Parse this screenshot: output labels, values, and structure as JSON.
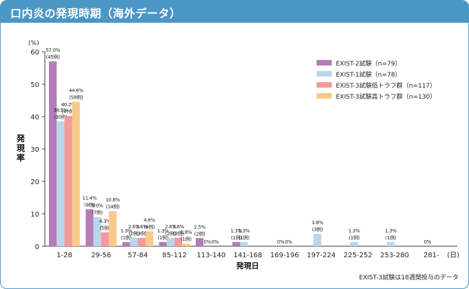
{
  "header": {
    "title": "口内炎の発現時期（海外データ）"
  },
  "footnote": "EXIST-3試験は18週間投与のデータ",
  "chart_data": {
    "type": "bar",
    "ylabel": "発現率",
    "yunit": "(%)",
    "xlabel": "発現日",
    "xunit": "(日)",
    "ylim": [
      0,
      60
    ],
    "yticks": [
      0,
      10,
      20,
      30,
      40,
      50,
      60
    ],
    "grid": false,
    "legend_position": "top-right",
    "categories": [
      "1-28",
      "29-56",
      "57-84",
      "85-112",
      "113-140",
      "141-168",
      "169-196",
      "197-224",
      "225-252",
      "253-280",
      "281-"
    ],
    "series": [
      {
        "name": "EXIST-2試験（n=79）",
        "color": "#b47cb8",
        "values": [
          57.0,
          11.4,
          1.3,
          1.3,
          2.5,
          1.3,
          null,
          null,
          null,
          null,
          null
        ],
        "labels": [
          [
            "57.0%",
            "(45例)"
          ],
          [
            "11.4%",
            "(9例)"
          ],
          [
            "1.3%",
            "(1例)"
          ],
          [
            "1.3%",
            "(1例)"
          ],
          [
            "2.5%",
            "(2例)"
          ],
          [
            "1.3%",
            "(1例)"
          ],
          [],
          [],
          [],
          [],
          []
        ]
      },
      {
        "name": "EXIST-1試験（n=78）",
        "color": "#b9d6ea",
        "values": [
          38.5,
          9.0,
          2.6,
          2.6,
          0,
          1.3,
          0,
          3.8,
          1.3,
          1.3,
          0
        ],
        "labels": [
          [
            "38.5%",
            "(30例)"
          ],
          [
            "9.0%",
            "(7例)"
          ],
          [
            "2.6%",
            "(2例)"
          ],
          [
            "2.6%",
            "(2例)"
          ],
          [
            "0%"
          ],
          [
            "1.3%",
            "(1例)"
          ],
          [
            "0%"
          ],
          [
            "3.8%",
            "(3例)"
          ],
          [
            "1.3%",
            "(1例)"
          ],
          [
            "1.3%",
            "(1例)"
          ],
          [
            "0%"
          ]
        ]
      },
      {
        "name": "EXIST-3試験低トラフ群（n=117）",
        "color": "#f29a9c",
        "values": [
          40.2,
          4.3,
          2.6,
          2.6,
          0,
          null,
          0,
          null,
          null,
          null,
          null
        ],
        "labels": [
          [
            "40.2%",
            "(47例)"
          ],
          [
            "4.3%",
            "(5例)"
          ],
          [
            "2.6%",
            "(3例)"
          ],
          [
            "2.6%",
            "(3例)"
          ],
          [
            "0%"
          ],
          [],
          [
            "0%"
          ],
          [],
          [],
          [],
          []
        ]
      },
      {
        "name": "EXIST-3試験高トラフ群（n=130）",
        "color": "#f9c98a",
        "values": [
          44.6,
          10.8,
          4.6,
          0.8,
          null,
          null,
          null,
          null,
          null,
          null,
          null
        ],
        "labels": [
          [
            "44.6%",
            "(58例)"
          ],
          [
            "10.8%",
            "(14例)"
          ],
          [
            "4.6%",
            "(6例)"
          ],
          [
            "0.8%",
            "(1例)"
          ],
          [],
          [],
          [],
          [],
          [],
          [],
          []
        ]
      }
    ],
    "zero_labels": [
      {
        "category": 7,
        "text": "0%"
      },
      {
        "category": 8,
        "text": "0%"
      },
      {
        "category": 9,
        "text": "0%"
      },
      {
        "category": 10,
        "text": "0%"
      }
    ]
  }
}
